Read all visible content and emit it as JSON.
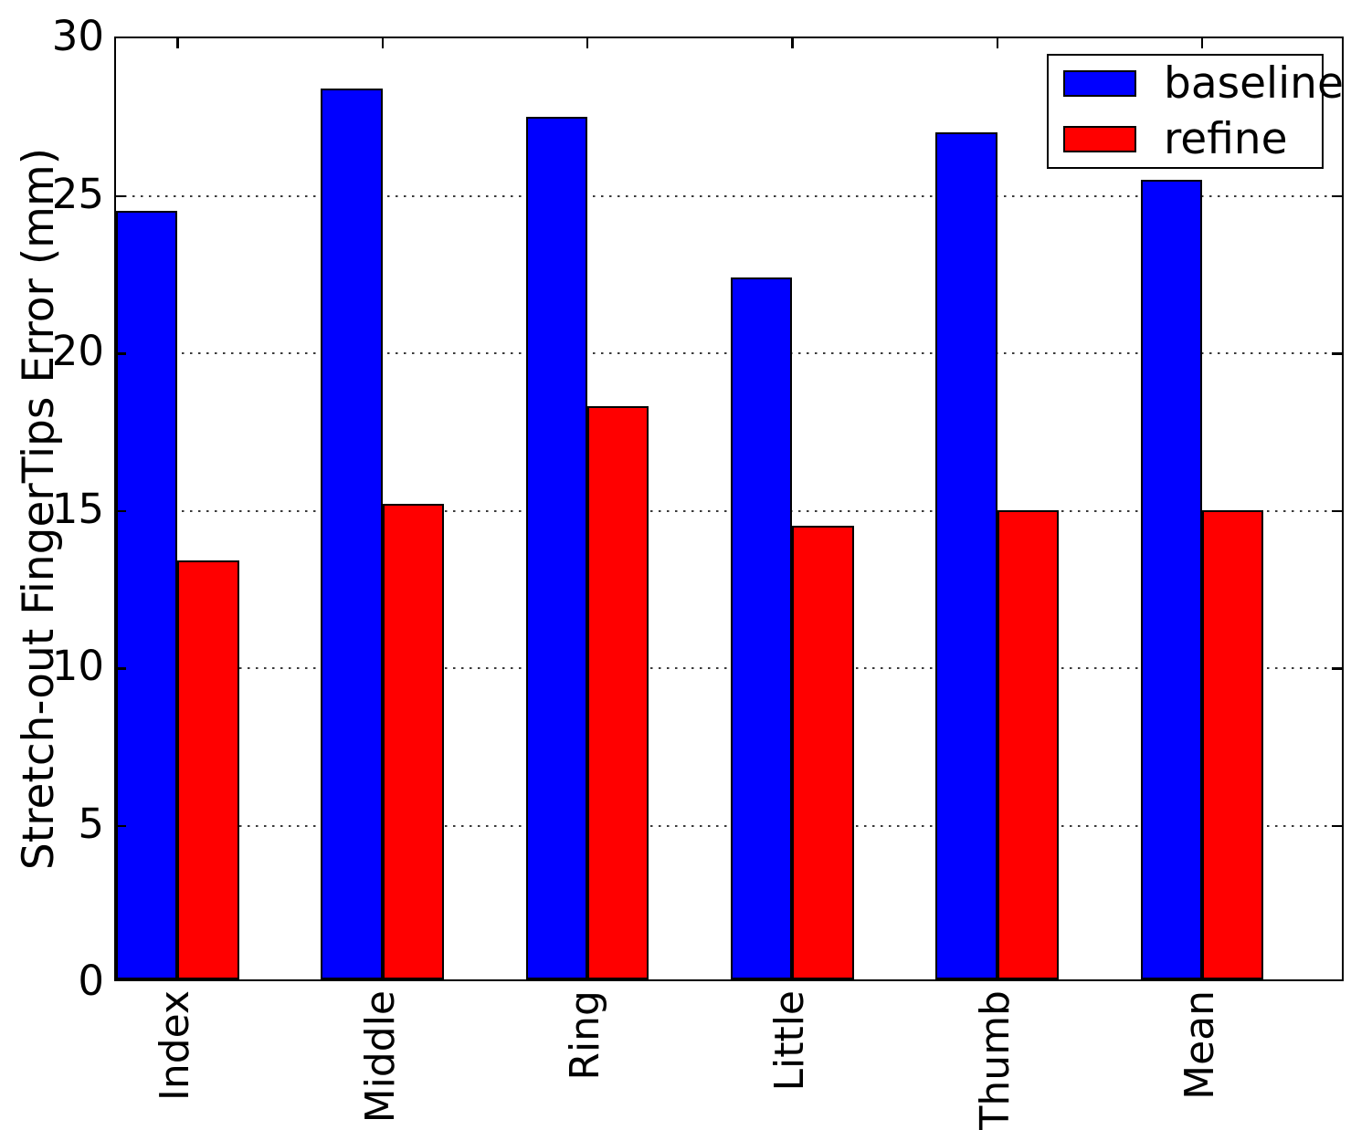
{
  "chart_data": {
    "type": "bar",
    "categories": [
      "Index",
      "Middle",
      "Ring",
      "Little",
      "Thumb",
      "Mean"
    ],
    "series": [
      {
        "name": "baseline",
        "color": "#0000ff",
        "values": [
          24.4,
          28.3,
          27.4,
          22.3,
          26.9,
          25.4
        ]
      },
      {
        "name": "refine",
        "color": "#ff0000",
        "values": [
          13.3,
          15.1,
          18.2,
          14.4,
          14.9,
          14.9
        ]
      }
    ],
    "title": "",
    "xlabel": "",
    "ylabel": "Stretch-out FingerTips Error (mm)",
    "ylim": [
      0,
      30
    ],
    "yticks": [
      0,
      5,
      10,
      15,
      20,
      25,
      30
    ],
    "ytick_labels": [
      "0",
      "5",
      "10",
      "15",
      "20",
      "25",
      "30"
    ],
    "x_tick_label_rotation": 90,
    "grid": "horizontal-dotted",
    "bar_edge_color": "#000000",
    "legend_position": "upper-right",
    "legend": {
      "items": [
        {
          "label": "baseline",
          "color": "#0000ff"
        },
        {
          "label": "refine",
          "color": "#ff0000"
        }
      ]
    }
  }
}
